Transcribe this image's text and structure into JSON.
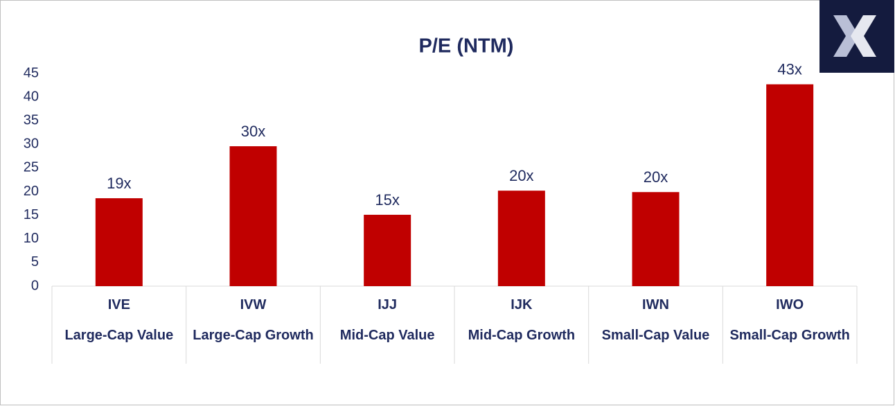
{
  "chart_data": {
    "type": "bar",
    "title": "P/E (NTM)",
    "categories": [
      "IVE",
      "IVW",
      "IJJ",
      "IJK",
      "IWN",
      "IWO"
    ],
    "category_descriptions": [
      "Large-Cap Value",
      "Large-Cap Growth",
      "Mid-Cap Value",
      "Mid-Cap Growth",
      "Small-Cap Value",
      "Small-Cap Growth"
    ],
    "values": [
      18.6,
      29.6,
      15.1,
      20.2,
      19.9,
      42.7
    ],
    "value_labels": [
      "19x",
      "30x",
      "15x",
      "20x",
      "20x",
      "43x"
    ],
    "color": "#c00000",
    "ylim": [
      0,
      45
    ],
    "yticks": [
      0,
      5,
      10,
      15,
      20,
      25,
      30,
      35,
      40,
      45
    ],
    "grid": false
  }
}
